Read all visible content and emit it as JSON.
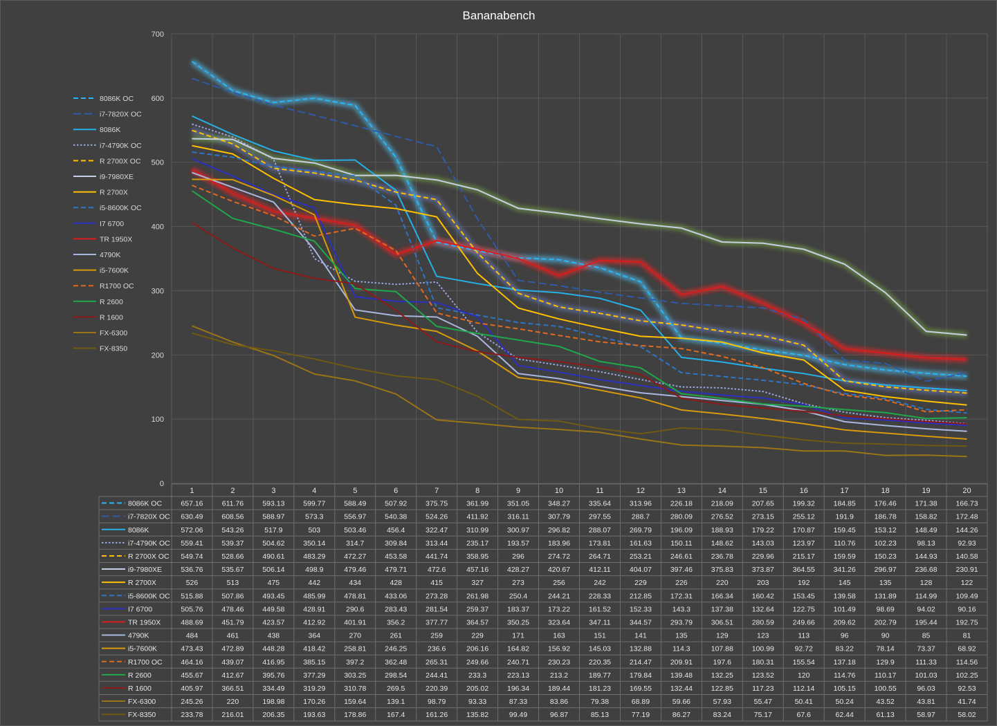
{
  "chart_data": {
    "type": "line",
    "title": "Bananabench",
    "ylim": [
      0,
      700
    ],
    "yticks": [
      0,
      100,
      200,
      300,
      400,
      500,
      600,
      700
    ],
    "grid": true,
    "legend_placement": "left",
    "data_table": true,
    "categories": [
      "1",
      "2",
      "3",
      "4",
      "5",
      "6",
      "7",
      "8",
      "9",
      "10",
      "11",
      "12",
      "13",
      "14",
      "15",
      "16",
      "17",
      "18",
      "19",
      "20"
    ],
    "series": [
      {
        "name": "8086K OC",
        "color": "#29b6f6",
        "dash": "dash",
        "glow": "#4fc3f7",
        "values": [
          657.16,
          611.76,
          593.13,
          599.77,
          588.49,
          507.92,
          375.75,
          361.99,
          351.05,
          348.27,
          335.64,
          313.96,
          226.18,
          218.09,
          207.65,
          199.32,
          184.85,
          176.46,
          171.38,
          166.73
        ]
      },
      {
        "name": "i7-7820X OC",
        "color": "#2e5aa8",
        "dash": "longdash",
        "glow": null,
        "values": [
          630.49,
          608.56,
          588.97,
          573.3,
          556.97,
          540.38,
          524.26,
          411.92,
          316.11,
          307.79,
          297.55,
          288.7,
          280.09,
          276.52,
          273.15,
          255.12,
          191.9,
          186.78,
          158.82,
          172.48
        ]
      },
      {
        "name": "8086K",
        "color": "#26b0e8",
        "dash": "solid",
        "glow": null,
        "values": [
          572.06,
          543.26,
          517.9,
          503,
          503.46,
          456.4,
          322.47,
          310.99,
          300.97,
          296.82,
          288.07,
          269.79,
          196.09,
          188.93,
          179.22,
          170.87,
          159.45,
          153.12,
          148.49,
          144.26
        ]
      },
      {
        "name": "i7-4790K OC",
        "color": "#9aa7e0",
        "dash": "dot",
        "glow": null,
        "values": [
          559.41,
          539.37,
          504.62,
          350.14,
          314.7,
          309.84,
          313.44,
          235.17,
          193.57,
          183.96,
          173.81,
          161.63,
          150.11,
          148.62,
          143.03,
          123.97,
          110.76,
          102.23,
          98.13,
          92.93
        ]
      },
      {
        "name": "R 2700X OC",
        "color": "#ffc000",
        "dash": "dash",
        "glow": "#6a7dbf",
        "values": [
          549.74,
          528.66,
          490.61,
          483.29,
          472.27,
          453.58,
          441.74,
          358.95,
          296,
          274.72,
          264.71,
          253.21,
          246.61,
          236.78,
          229.96,
          215.17,
          159.59,
          150.23,
          144.93,
          140.58
        ]
      },
      {
        "name": "i9-7980XE",
        "color": "#c7cfe6",
        "dash": "solid",
        "glow": "#78a542",
        "values": [
          536.76,
          535.67,
          506.14,
          498.9,
          479.46,
          479.71,
          472.6,
          457.16,
          428.27,
          420.67,
          412.11,
          404.07,
          397.46,
          375.83,
          373.87,
          364.55,
          341.26,
          296.97,
          236.68,
          230.91
        ]
      },
      {
        "name": "R 2700X",
        "color": "#ffc000",
        "dash": "solid",
        "glow": null,
        "values": [
          526,
          513,
          475,
          442,
          434,
          428,
          415,
          327,
          273,
          256,
          242,
          229,
          226,
          220,
          203,
          192,
          145,
          135,
          128,
          122
        ]
      },
      {
        "name": "i5-8600K OC",
        "color": "#2e75c8",
        "dash": "dash",
        "glow": null,
        "values": [
          515.88,
          507.86,
          493.45,
          485.99,
          478.81,
          433.06,
          273.28,
          261.98,
          250.4,
          244.21,
          228.33,
          212.85,
          172.31,
          166.34,
          160.42,
          153.45,
          139.58,
          131.89,
          114.99,
          109.49
        ]
      },
      {
        "name": "I7 6700",
        "color": "#2a2fbf",
        "dash": "solid",
        "glow": null,
        "values": [
          505.76,
          478.46,
          449.58,
          428.91,
          290.6,
          283.43,
          281.54,
          259.37,
          183.37,
          173.22,
          161.52,
          152.33,
          143.3,
          137.38,
          132.64,
          122.75,
          101.49,
          98.69,
          94.02,
          90.16
        ]
      },
      {
        "name": "TR 1950X",
        "color": "#d61d1d",
        "dash": "solid",
        "glow": "#ff2222",
        "values": [
          488.69,
          451.79,
          423.57,
          412.92,
          401.91,
          356.2,
          377.77,
          364.57,
          350.25,
          323.64,
          347.11,
          344.57,
          293.79,
          306.51,
          280.59,
          249.66,
          209.62,
          202.79,
          195.44,
          192.75
        ]
      },
      {
        "name": "4790K",
        "color": "#a9b8e0",
        "dash": "solid",
        "glow": null,
        "values": [
          484,
          461,
          438,
          364,
          270,
          261,
          259,
          229,
          171,
          163,
          151,
          141,
          135,
          129,
          123,
          113,
          96,
          90,
          85,
          81
        ]
      },
      {
        "name": "i5-7600K",
        "color": "#d99a0b",
        "dash": "solid",
        "glow": null,
        "values": [
          473.43,
          472.89,
          448.28,
          418.42,
          258.81,
          246.25,
          236.6,
          206.16,
          164.82,
          156.92,
          145.03,
          132.88,
          114.3,
          107.88,
          100.99,
          92.72,
          83.22,
          78.14,
          73.37,
          68.92
        ]
      },
      {
        "name": "R1700 OC",
        "color": "#e3691f",
        "dash": "dash",
        "glow": null,
        "values": [
          464.16,
          439.07,
          416.95,
          385.15,
          397.2,
          362.48,
          265.31,
          249.66,
          240.71,
          230.23,
          220.35,
          214.47,
          209.91,
          197.6,
          180.31,
          155.54,
          137.18,
          129.9,
          111.33,
          114.56
        ]
      },
      {
        "name": "R 2600",
        "color": "#1fa84a",
        "dash": "solid",
        "glow": null,
        "values": [
          455.67,
          412.67,
          395.76,
          377.29,
          303.25,
          298.54,
          244.41,
          233.3,
          223.13,
          213.2,
          189.77,
          179.84,
          139.48,
          132.25,
          123.52,
          120,
          114.76,
          110.17,
          101.03,
          102.25
        ]
      },
      {
        "name": "R 1600",
        "color": "#8b1a1a",
        "dash": "solid",
        "glow": null,
        "values": [
          405.97,
          366.51,
          334.49,
          319.29,
          310.78,
          269.5,
          220.39,
          205.02,
          196.34,
          189.44,
          181.23,
          169.55,
          132.44,
          122.85,
          117.23,
          112.14,
          105.15,
          100.55,
          96.03,
          92.53
        ]
      },
      {
        "name": "FX-6300",
        "color": "#9c7418",
        "dash": "solid",
        "glow": null,
        "values": [
          245.26,
          220,
          198.98,
          170.26,
          159.64,
          139.1,
          98.79,
          93.33,
          87.33,
          83.86,
          79.38,
          68.89,
          59.66,
          57.93,
          55.47,
          50.41,
          50.24,
          43.52,
          43.81,
          41.74
        ]
      },
      {
        "name": "FX-8350",
        "color": "#6e5a12",
        "dash": "solid",
        "glow": null,
        "values": [
          233.78,
          216.01,
          206.35,
          193.63,
          178.86,
          167.4,
          161.26,
          135.82,
          99.49,
          96.87,
          85.13,
          77.19,
          86.27,
          83.24,
          75.17,
          67.6,
          62.44,
          61.13,
          58.97,
          58.02
        ]
      }
    ]
  }
}
